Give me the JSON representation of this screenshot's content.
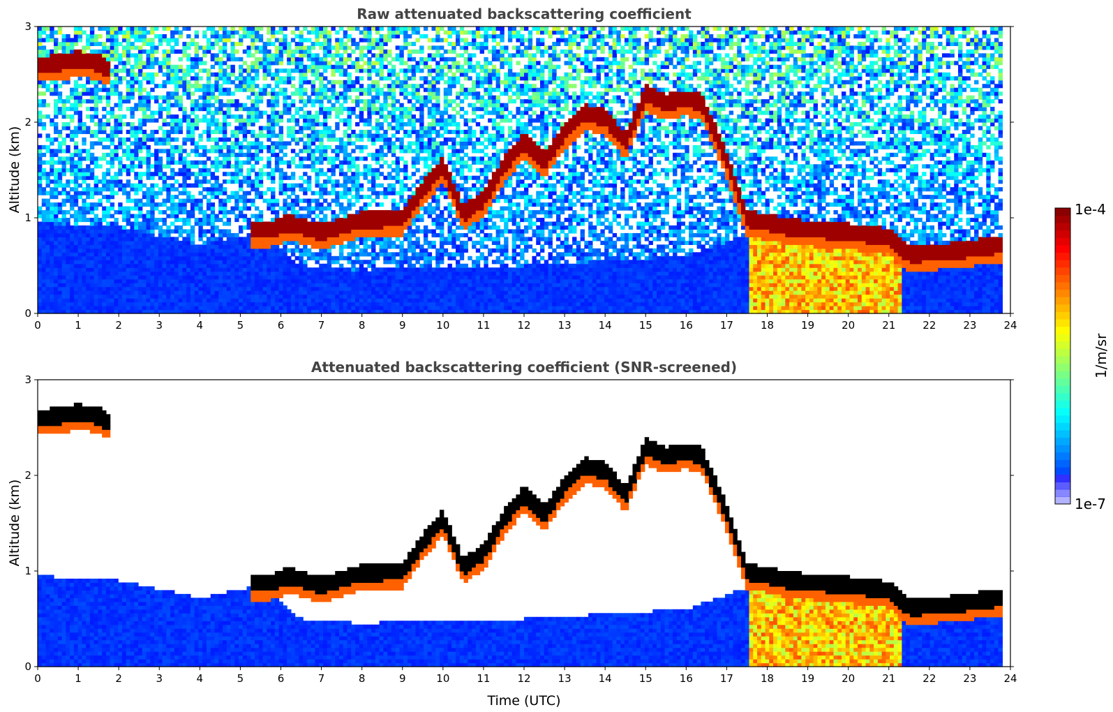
{
  "colors": {
    "jet": [
      "#00007f",
      "#0000ff",
      "#007fff",
      "#00ffff",
      "#7fff7f",
      "#ffff00",
      "#ff7f00",
      "#ff0000",
      "#7f0000"
    ],
    "background": "#ffffff",
    "saturated": "#000000"
  },
  "chart_data": [
    {
      "type": "heatmap",
      "title": "Raw attenuated backscattering coefficient",
      "xlabel": "",
      "ylabel": "Altitude (km)",
      "xlim": [
        0,
        24
      ],
      "ylim": [
        0,
        3
      ],
      "xticks": [
        "0",
        "1",
        "2",
        "3",
        "4",
        "5",
        "6",
        "7",
        "8",
        "9",
        "10",
        "11",
        "12",
        "13",
        "14",
        "15",
        "16",
        "17",
        "18",
        "19",
        "20",
        "21",
        "22",
        "23",
        "24"
      ],
      "yticks": [
        "0",
        "1",
        "2",
        "3"
      ],
      "x_unit": "hours UTC",
      "y_unit": "km",
      "screened": false,
      "cloud_layer": {
        "description_points": [
          {
            "t": 0.0,
            "alt_km": 2.6
          },
          {
            "t": 0.5,
            "alt_km": 2.62
          },
          {
            "t": 1.0,
            "alt_km": 2.66
          },
          {
            "t": 1.5,
            "alt_km": 2.62
          },
          {
            "t": 1.8,
            "alt_km": 2.55
          },
          {
            "t": 5.3,
            "alt_km": 0.88
          },
          {
            "t": 5.8,
            "alt_km": 0.88
          },
          {
            "t": 6.2,
            "alt_km": 0.95
          },
          {
            "t": 7.0,
            "alt_km": 0.85
          },
          {
            "t": 8.0,
            "alt_km": 0.98
          },
          {
            "t": 9.0,
            "alt_km": 1.0
          },
          {
            "t": 9.5,
            "alt_km": 1.3
          },
          {
            "t": 10.0,
            "alt_km": 1.55
          },
          {
            "t": 10.5,
            "alt_km": 1.05
          },
          {
            "t": 11.0,
            "alt_km": 1.2
          },
          {
            "t": 11.5,
            "alt_km": 1.55
          },
          {
            "t": 12.0,
            "alt_km": 1.8
          },
          {
            "t": 12.5,
            "alt_km": 1.6
          },
          {
            "t": 13.0,
            "alt_km": 1.9
          },
          {
            "t": 13.5,
            "alt_km": 2.1
          },
          {
            "t": 14.0,
            "alt_km": 2.05
          },
          {
            "t": 14.5,
            "alt_km": 1.8
          },
          {
            "t": 15.0,
            "alt_km": 2.3
          },
          {
            "t": 15.5,
            "alt_km": 2.2
          },
          {
            "t": 16.0,
            "alt_km": 2.25
          },
          {
            "t": 16.4,
            "alt_km": 2.2
          },
          {
            "t": 17.0,
            "alt_km": 1.6
          },
          {
            "t": 17.5,
            "alt_km": 1.0
          },
          {
            "t": 18.5,
            "alt_km": 0.9
          },
          {
            "t": 20.0,
            "alt_km": 0.85
          },
          {
            "t": 21.0,
            "alt_km": 0.8
          },
          {
            "t": 21.5,
            "alt_km": 0.62
          },
          {
            "t": 22.5,
            "alt_km": 0.65
          },
          {
            "t": 23.8,
            "alt_km": 0.72
          }
        ],
        "data_end_hour": 23.8
      }
    },
    {
      "type": "heatmap",
      "title": "Attenuated backscattering coefficient (SNR-screened)",
      "xlabel": "Time (UTC)",
      "ylabel": "Altitude (km)",
      "xlim": [
        0,
        24
      ],
      "ylim": [
        0,
        3
      ],
      "xticks": [
        "0",
        "1",
        "2",
        "3",
        "4",
        "5",
        "6",
        "7",
        "8",
        "9",
        "10",
        "11",
        "12",
        "13",
        "14",
        "15",
        "16",
        "17",
        "18",
        "19",
        "20",
        "21",
        "22",
        "23",
        "24"
      ],
      "yticks": [
        "0",
        "1",
        "2",
        "3"
      ],
      "x_unit": "hours UTC",
      "y_unit": "km",
      "screened": true,
      "boundary_layer_top": [
        {
          "t": 0.0,
          "alt_km": 0.95
        },
        {
          "t": 2.0,
          "alt_km": 0.9
        },
        {
          "t": 4.0,
          "alt_km": 0.72
        },
        {
          "t": 5.5,
          "alt_km": 0.85
        },
        {
          "t": 6.5,
          "alt_km": 0.5
        },
        {
          "t": 8.0,
          "alt_km": 0.45
        },
        {
          "t": 10.0,
          "alt_km": 0.5
        },
        {
          "t": 12.0,
          "alt_km": 0.5
        },
        {
          "t": 14.0,
          "alt_km": 0.55
        },
        {
          "t": 16.0,
          "alt_km": 0.6
        },
        {
          "t": 18.0,
          "alt_km": 0.9
        },
        {
          "t": 21.0,
          "alt_km": 0.7
        }
      ]
    }
  ],
  "colorbar": {
    "max_label": "1e-4",
    "min_label": "1e-7",
    "unit_label": "1/m/sr",
    "scale": "log",
    "range": [
      1e-07,
      0.0001
    ]
  }
}
